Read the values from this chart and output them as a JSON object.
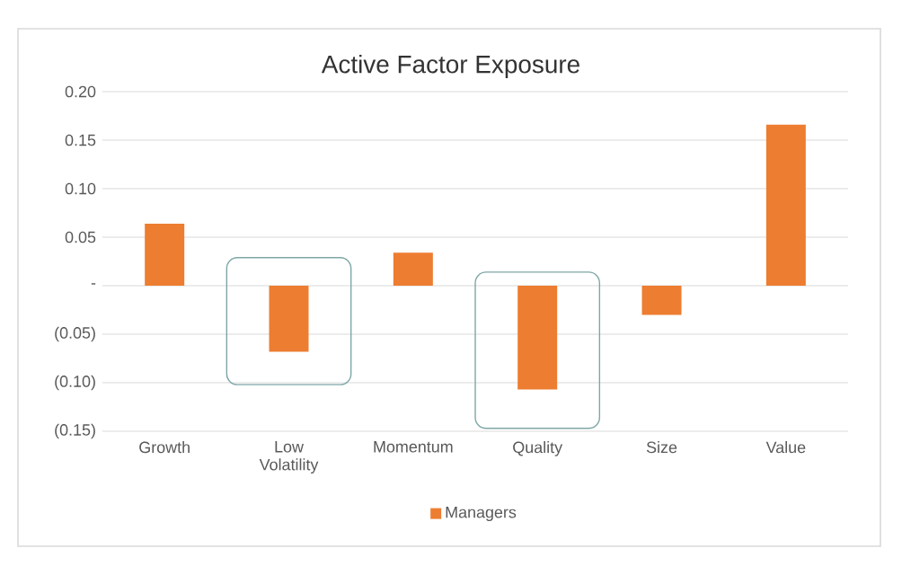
{
  "chart_data": {
    "type": "bar",
    "title": "Active Factor Exposure",
    "categories": [
      "Growth",
      "Low Volatility",
      "Momentum",
      "Quality",
      "Size",
      "Value"
    ],
    "series": [
      {
        "name": "Managers",
        "color": "#ed7d31",
        "values": [
          0.064,
          -0.068,
          0.034,
          -0.107,
          -0.03,
          0.166
        ]
      }
    ],
    "ylim": [
      -0.15,
      0.2
    ],
    "yticks": [
      {
        "value": 0.2,
        "label": "0.20"
      },
      {
        "value": 0.15,
        "label": "0.15"
      },
      {
        "value": 0.1,
        "label": "0.10"
      },
      {
        "value": 0.05,
        "label": "0.05"
      },
      {
        "value": 0,
        "label": "-"
      },
      {
        "value": -0.05,
        "label": "(0.05)"
      },
      {
        "value": -0.1,
        "label": "(0.10)"
      },
      {
        "value": -0.15,
        "label": "(0.15)"
      }
    ],
    "grid": "y",
    "legend": "bottom"
  }
}
